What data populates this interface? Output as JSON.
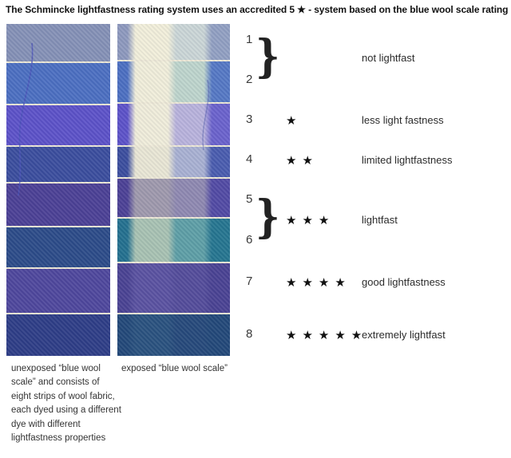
{
  "title": "The Schmincke lightfastness rating system uses an accredited 5 ★ - system based on the blue wool scale rating",
  "strips": {
    "unexposed": {
      "caption_lines": [
        "unexposed “blue  wool",
        "scale”  and  consists  of",
        "eight strips of wool fabric,",
        "each dyed using a different",
        "dye with different",
        "lightfastness properties"
      ],
      "band_colors": [
        "#8591B6",
        "#4C6FC1",
        "#5C52C8",
        "#3B4D9D",
        "#4B4095",
        "#2C4B88",
        "#4F479C",
        "#2E3D86"
      ]
    },
    "exposed": {
      "caption_lines": [
        "exposed “blue wool scale”"
      ],
      "band_colors": [
        [
          "#8E99BD",
          "#F2EFDA",
          "#CBD6D6",
          "#92A0C2"
        ],
        [
          "#4C6FC1",
          "#F1EEDA",
          "#BED5CC",
          "#5578C4"
        ],
        [
          "#5C52C8",
          "#F0EDDA",
          "#B9B3DC",
          "#6B62CC"
        ],
        [
          "#3B4D9D",
          "#E9E6D4",
          "#A9B1D2",
          "#4A5CAE"
        ],
        [
          "#4B4095",
          "#9F99AC",
          "#8F89B0",
          "#524AA4"
        ],
        [
          "#23708E",
          "#A8C2B2",
          "#5E9FA6",
          "#25758F"
        ],
        [
          "#4A4292",
          "#5A52A0",
          "#544C9A",
          "#4A4292"
        ],
        [
          "#224878",
          "#2A527E",
          "#26497A",
          "#224878"
        ]
      ]
    }
  },
  "scale": {
    "star_glyph": "★",
    "rows": [
      {
        "numbers": [
          "1",
          "2"
        ],
        "stars": 0,
        "label": "not lightfast"
      },
      {
        "numbers": [
          "3"
        ],
        "stars": 1,
        "label": "less light fastness"
      },
      {
        "numbers": [
          "4"
        ],
        "stars": 2,
        "label": "limited lightfastness"
      },
      {
        "numbers": [
          "5",
          "6"
        ],
        "stars": 3,
        "label": "lightfast"
      },
      {
        "numbers": [
          "7"
        ],
        "stars": 4,
        "label": "good lightfastness"
      },
      {
        "numbers": [
          "8"
        ],
        "stars": 5,
        "label": "extremely lightfast"
      }
    ]
  },
  "colors": {
    "seam": "#EDE8D6",
    "background": "#FFFFFF"
  }
}
